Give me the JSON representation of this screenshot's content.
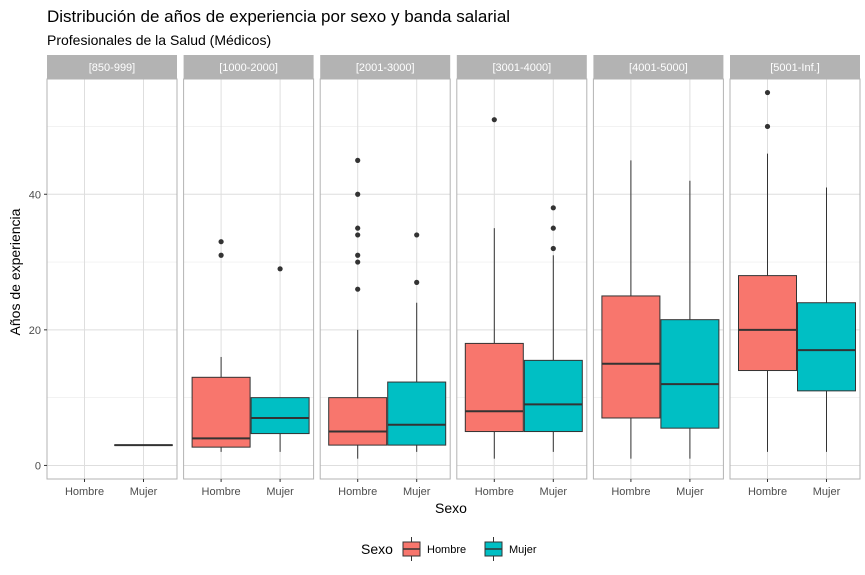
{
  "chart_data": {
    "type": "box",
    "title": "Distribución de años de experiencia por sexo y banda salarial",
    "subtitle": "Profesionales de la Salud (Médicos)",
    "xlabel": "Sexo",
    "ylabel": "Años de experiencia",
    "ylim": [
      -2,
      57
    ],
    "yticks": [
      0,
      20,
      40
    ],
    "categories": [
      "Hombre",
      "Mujer"
    ],
    "grid": true,
    "legend": {
      "title": "Sexo",
      "position": "bottom",
      "entries": [
        {
          "label": "Hombre",
          "color": "#F8766D"
        },
        {
          "label": "Mujer",
          "color": "#00BFC4"
        }
      ]
    },
    "facets": [
      {
        "label": "[850-999]",
        "boxes": [
          null,
          {
            "group": "Mujer",
            "min": 3,
            "q1": 3,
            "median": 3,
            "q3": 3,
            "max": 3,
            "outliers": []
          }
        ]
      },
      {
        "label": "[1000-2000]",
        "boxes": [
          {
            "group": "Hombre",
            "min": 2,
            "q1": 2.7,
            "median": 4,
            "q3": 13,
            "max": 16,
            "outliers": [
              31,
              33
            ]
          },
          {
            "group": "Mujer",
            "min": 2,
            "q1": 4.7,
            "median": 7,
            "q3": 10,
            "max": 10,
            "outliers": [
              29
            ]
          }
        ]
      },
      {
        "label": "[2001-3000]",
        "boxes": [
          {
            "group": "Hombre",
            "min": 1,
            "q1": 3,
            "median": 5,
            "q3": 10,
            "max": 20,
            "outliers": [
              26,
              30,
              31,
              34,
              35,
              40,
              45
            ]
          },
          {
            "group": "Mujer",
            "min": 2,
            "q1": 3,
            "median": 6,
            "q3": 12.3,
            "max": 24,
            "outliers": [
              27,
              34
            ]
          }
        ]
      },
      {
        "label": "[3001-4000]",
        "boxes": [
          {
            "group": "Hombre",
            "min": 1,
            "q1": 5,
            "median": 8,
            "q3": 18,
            "max": 35,
            "outliers": [
              51
            ]
          },
          {
            "group": "Mujer",
            "min": 2,
            "q1": 5,
            "median": 9,
            "q3": 15.5,
            "max": 31,
            "outliers": [
              32,
              35,
              38
            ]
          }
        ]
      },
      {
        "label": "[4001-5000]",
        "boxes": [
          {
            "group": "Hombre",
            "min": 1,
            "q1": 7,
            "median": 15,
            "q3": 25,
            "max": 45,
            "outliers": []
          },
          {
            "group": "Mujer",
            "min": 1,
            "q1": 5.5,
            "median": 12,
            "q3": 21.5,
            "max": 42,
            "outliers": []
          }
        ]
      },
      {
        "label": "[5001-Inf.]",
        "boxes": [
          {
            "group": "Hombre",
            "min": 2,
            "q1": 14,
            "median": 20,
            "q3": 28,
            "max": 46,
            "outliers": [
              50,
              55
            ]
          },
          {
            "group": "Mujer",
            "min": 2,
            "q1": 11,
            "median": 17,
            "q3": 24,
            "max": 41,
            "outliers": []
          }
        ]
      }
    ]
  }
}
